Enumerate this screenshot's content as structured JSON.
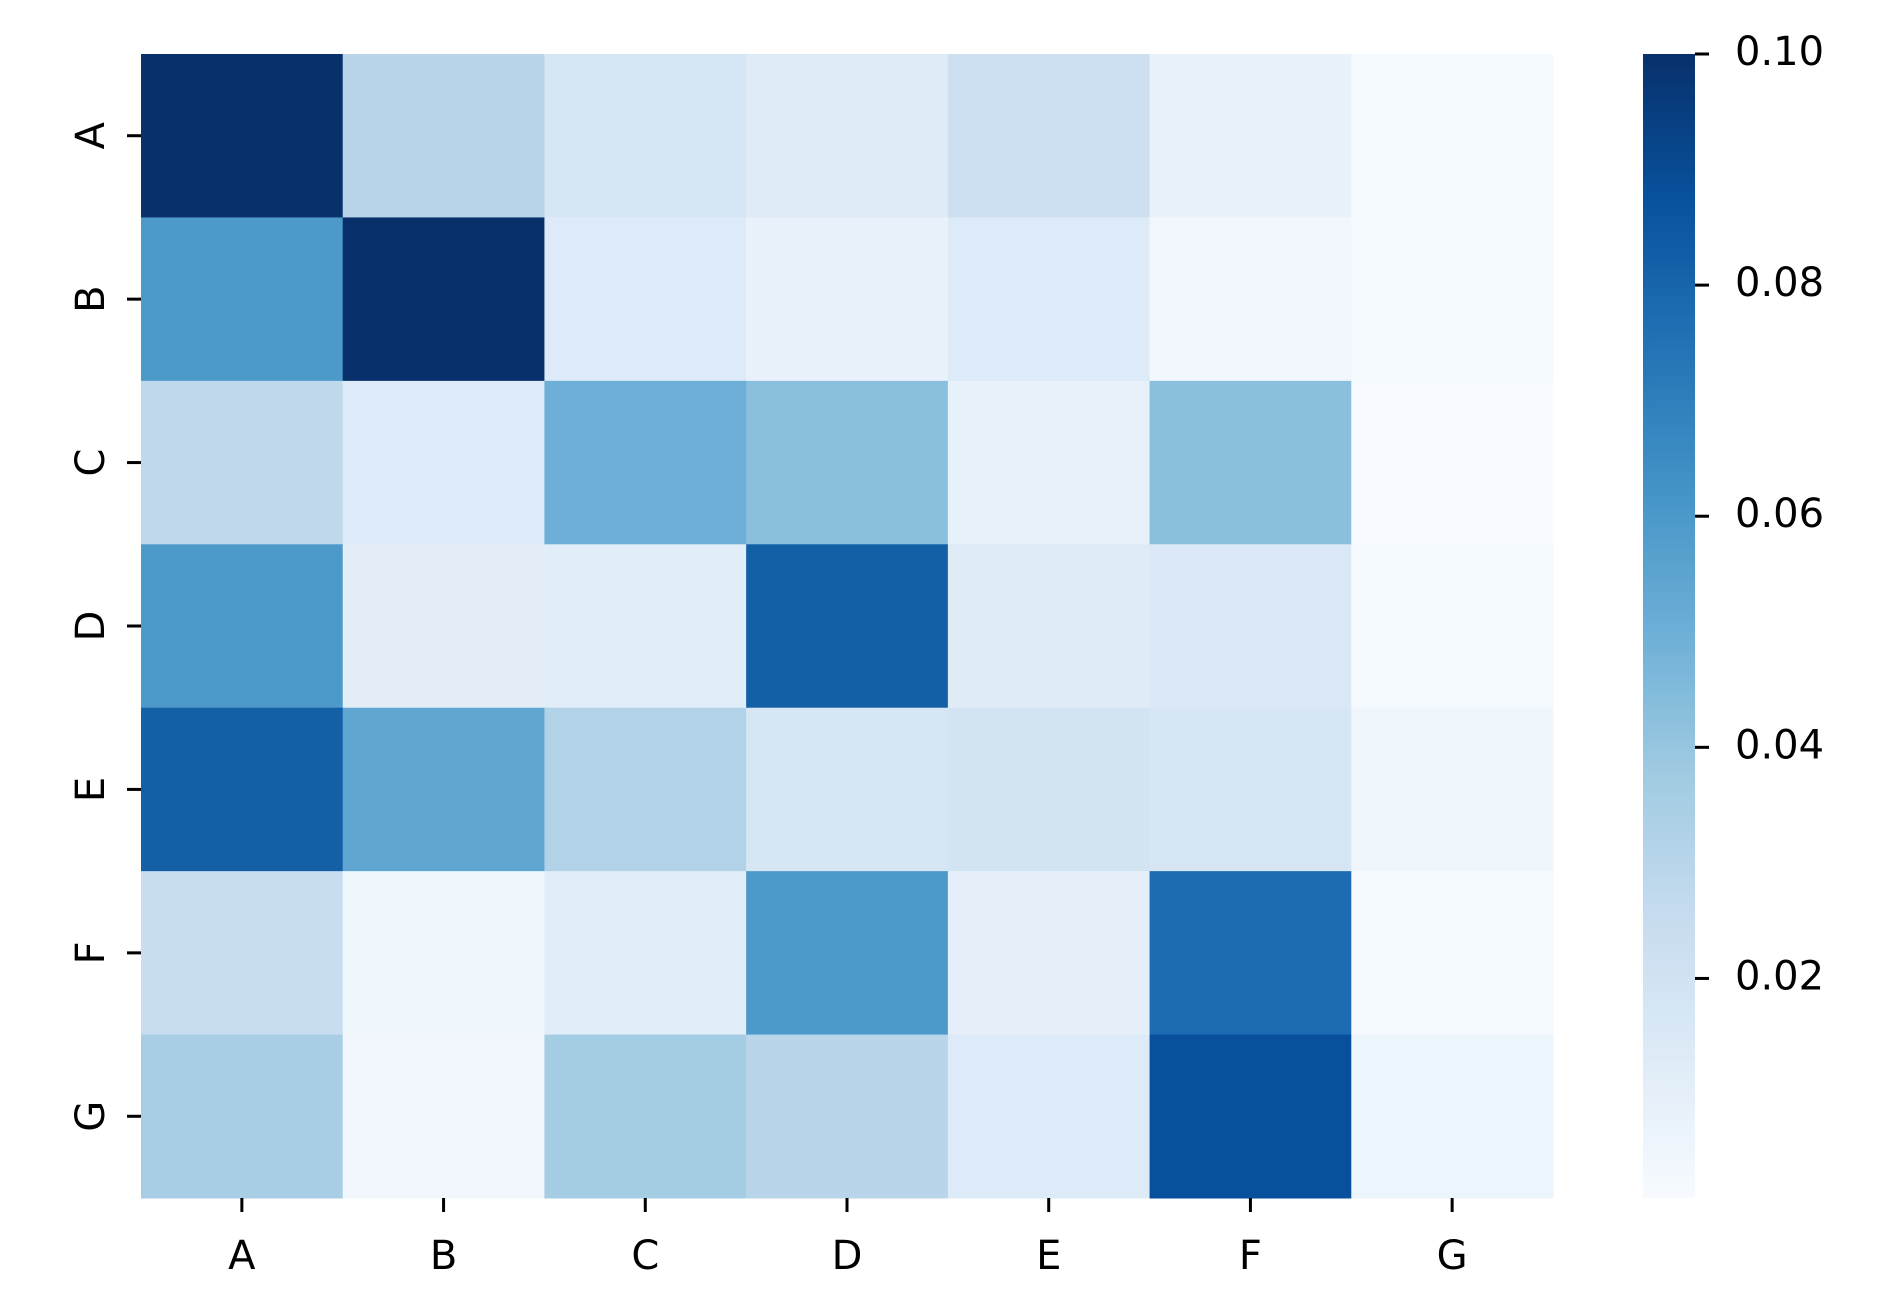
{
  "chart_data": {
    "type": "heatmap",
    "xlabels": [
      "A",
      "B",
      "C",
      "D",
      "E",
      "F",
      "G"
    ],
    "ylabels": [
      "A",
      "B",
      "C",
      "D",
      "E",
      "F",
      "G"
    ],
    "z": [
      [
        0.1,
        0.03,
        0.017,
        0.013,
        0.022,
        0.008,
        0.002
      ],
      [
        0.06,
        0.1,
        0.014,
        0.008,
        0.014,
        0.004,
        0.002
      ],
      [
        0.028,
        0.014,
        0.05,
        0.043,
        0.009,
        0.043,
        0.001
      ],
      [
        0.06,
        0.011,
        0.012,
        0.082,
        0.013,
        0.015,
        0.002
      ],
      [
        0.082,
        0.054,
        0.032,
        0.017,
        0.019,
        0.017,
        0.005
      ],
      [
        0.024,
        0.005,
        0.012,
        0.06,
        0.01,
        0.077,
        0.002
      ],
      [
        0.035,
        0.004,
        0.036,
        0.03,
        0.014,
        0.088,
        0.006
      ]
    ],
    "colormap": "Blues",
    "zlim": [
      0.001,
      0.1
    ],
    "colorbar_ticks": [
      0.02,
      0.04,
      0.06,
      0.08,
      {
        "value": 0.1,
        "label": "0.10"
      }
    ]
  }
}
